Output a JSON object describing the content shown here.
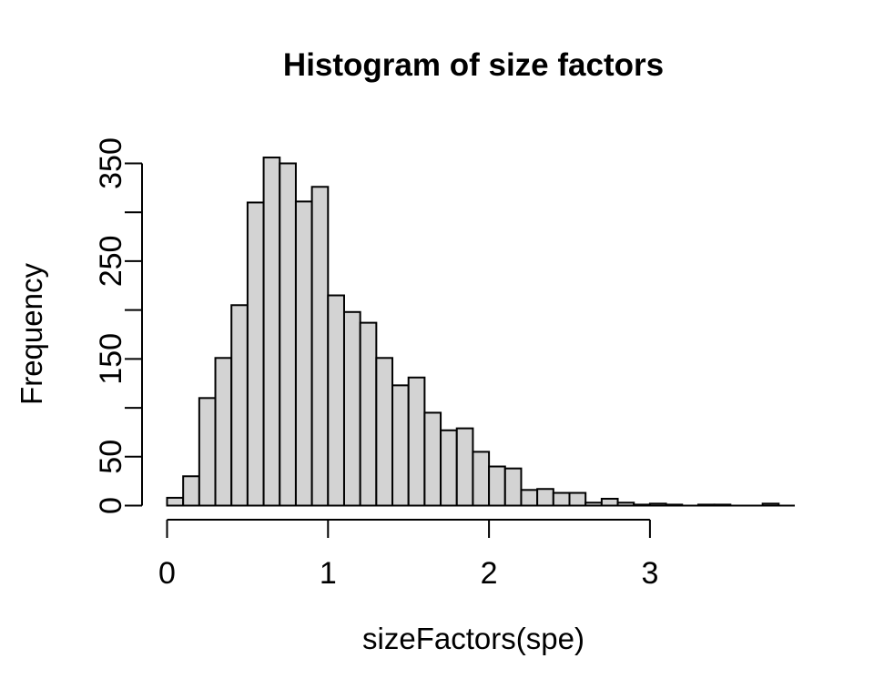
{
  "chart_data": {
    "type": "bar",
    "subtype": "histogram",
    "title": "Histogram of size factors",
    "xlabel": "sizeFactors(spe)",
    "ylabel": "Frequency",
    "bin_start": 0.0,
    "bin_width": 0.1,
    "bin_edges": [
      0.0,
      0.1,
      0.2,
      0.3,
      0.4,
      0.5,
      0.6,
      0.7,
      0.8,
      0.9,
      1.0,
      1.1,
      1.2,
      1.3,
      1.4,
      1.5,
      1.6,
      1.7,
      1.8,
      1.9,
      2.0,
      2.1,
      2.2,
      2.3,
      2.4,
      2.5,
      2.6,
      2.7,
      2.8,
      2.9,
      3.0,
      3.1,
      3.2,
      3.3,
      3.4,
      3.5,
      3.6,
      3.7,
      3.8
    ],
    "counts": [
      8,
      30,
      110,
      151,
      205,
      310,
      356,
      350,
      311,
      326,
      215,
      198,
      187,
      151,
      123,
      131,
      95,
      77,
      79,
      55,
      40,
      38,
      16,
      17,
      13,
      13,
      3,
      7,
      3,
      1,
      2,
      1,
      0,
      1,
      1,
      0,
      0,
      2
    ],
    "x_ticks": [
      0,
      1,
      2,
      3
    ],
    "x_tick_labels": [
      "0",
      "1",
      "2",
      "3"
    ],
    "x_axis_range": [
      0,
      3
    ],
    "y_ticks": [
      0,
      50,
      100,
      150,
      200,
      250,
      300,
      350
    ],
    "y_tick_labels": [
      "0",
      "50",
      "",
      "150",
      "",
      "250",
      "",
      "350"
    ],
    "ylim": [
      0,
      350
    ],
    "grid": false,
    "legend_position": "none",
    "bar_fill": "#d3d3d3",
    "bar_stroke": "#000000",
    "axis_color": "#000000",
    "background": "#ffffff"
  }
}
